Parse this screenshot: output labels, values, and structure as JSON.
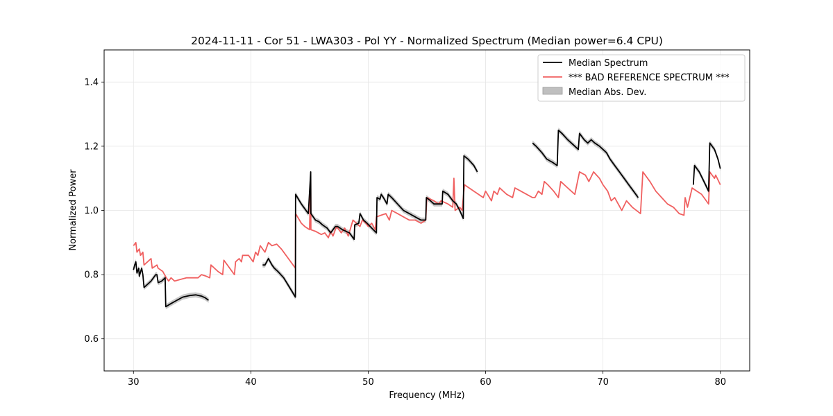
{
  "chart_data": {
    "type": "line",
    "title": "2024-11-11 - Cor 51 - LWA303 - Pol YY - Normalized Spectrum (Median power=6.4 CPU)",
    "xlabel": "Frequency (MHz)",
    "ylabel": "Normalized Power",
    "xlim": [
      27.5,
      82.5
    ],
    "ylim": [
      0.5,
      1.5
    ],
    "xticks": [
      30,
      40,
      50,
      60,
      70,
      80
    ],
    "yticks": [
      0.6,
      0.8,
      1.0,
      1.2,
      1.4
    ],
    "xtick_labels": [
      "30",
      "40",
      "50",
      "60",
      "70",
      "80"
    ],
    "ytick_labels": [
      "0.6",
      "0.8",
      "1.0",
      "1.2",
      "1.4"
    ],
    "grid": true,
    "legend_position": "top-right",
    "legend": [
      "Median Spectrum",
      "*** BAD REFERENCE SPECTRUM ***",
      "Median Abs. Dev."
    ],
    "colors": {
      "median": "#000000",
      "reference": "#f06060",
      "mad": "#bfbfbf"
    },
    "mad_halfwidth": 0.008,
    "series": [
      {
        "name": "*** BAD REFERENCE SPECTRUM ***",
        "kind": "reference",
        "segments": [
          [
            [
              30.0,
              0.89
            ],
            [
              30.2,
              0.9
            ],
            [
              30.3,
              0.87
            ],
            [
              30.5,
              0.88
            ],
            [
              30.6,
              0.86
            ],
            [
              30.8,
              0.87
            ],
            [
              30.9,
              0.83
            ],
            [
              31.2,
              0.84
            ],
            [
              31.5,
              0.85
            ],
            [
              31.6,
              0.82
            ],
            [
              32.0,
              0.83
            ],
            [
              32.1,
              0.82
            ],
            [
              32.5,
              0.81
            ],
            [
              32.8,
              0.79
            ],
            [
              33.0,
              0.78
            ],
            [
              33.2,
              0.79
            ],
            [
              33.5,
              0.78
            ],
            [
              34.0,
              0.785
            ],
            [
              34.5,
              0.79
            ],
            [
              35.0,
              0.79
            ],
            [
              35.5,
              0.79
            ],
            [
              35.8,
              0.8
            ],
            [
              36.2,
              0.795
            ],
            [
              36.5,
              0.79
            ],
            [
              36.6,
              0.83
            ],
            [
              37.2,
              0.81
            ],
            [
              37.6,
              0.8
            ],
            [
              37.7,
              0.845
            ],
            [
              38.2,
              0.82
            ],
            [
              38.6,
              0.8
            ],
            [
              38.7,
              0.84
            ],
            [
              39.0,
              0.85
            ],
            [
              39.2,
              0.84
            ],
            [
              39.3,
              0.86
            ],
            [
              39.8,
              0.86
            ],
            [
              40.0,
              0.85
            ],
            [
              40.2,
              0.84
            ],
            [
              40.4,
              0.87
            ],
            [
              40.6,
              0.86
            ],
            [
              40.8,
              0.89
            ],
            [
              41.2,
              0.87
            ],
            [
              41.5,
              0.9
            ],
            [
              41.8,
              0.89
            ],
            [
              42.2,
              0.895
            ],
            [
              42.6,
              0.88
            ],
            [
              42.8,
              0.87
            ],
            [
              43.2,
              0.85
            ],
            [
              43.6,
              0.83
            ],
            [
              43.8,
              0.82
            ],
            [
              43.81,
              0.99
            ],
            [
              44.3,
              0.96
            ],
            [
              44.6,
              0.95
            ],
            [
              45.0,
              0.94
            ],
            [
              45.1,
              1.1
            ],
            [
              45.12,
              0.94
            ],
            [
              45.5,
              0.935
            ],
            [
              46.0,
              0.925
            ],
            [
              46.3,
              0.93
            ],
            [
              46.6,
              0.915
            ],
            [
              46.8,
              0.935
            ],
            [
              47.0,
              0.92
            ],
            [
              47.3,
              0.95
            ],
            [
              47.7,
              0.93
            ],
            [
              48.0,
              0.945
            ],
            [
              48.3,
              0.92
            ],
            [
              48.7,
              0.97
            ],
            [
              49.0,
              0.96
            ],
            [
              49.3,
              0.95
            ],
            [
              49.5,
              0.97
            ],
            [
              49.8,
              0.96
            ],
            [
              50.0,
              0.95
            ],
            [
              50.3,
              0.96
            ],
            [
              50.6,
              0.94
            ],
            [
              50.7,
              0.98
            ],
            [
              51.1,
              0.985
            ],
            [
              51.5,
              0.99
            ],
            [
              51.8,
              0.97
            ],
            [
              52.0,
              1.0
            ],
            [
              52.5,
              0.99
            ],
            [
              53.0,
              0.98
            ],
            [
              53.5,
              0.97
            ],
            [
              54.0,
              0.97
            ],
            [
              54.5,
              0.96
            ],
            [
              54.9,
              0.97
            ],
            [
              55.0,
              1.04
            ],
            [
              55.6,
              1.03
            ],
            [
              56.0,
              1.02
            ],
            [
              56.2,
              1.03
            ],
            [
              56.8,
              1.02
            ],
            [
              57.2,
              1.01
            ],
            [
              57.3,
              1.1
            ],
            [
              57.4,
              1.0
            ],
            [
              57.8,
              1.01
            ],
            [
              58.0,
              1.0
            ],
            [
              58.2,
              1.08
            ],
            [
              59.0,
              1.06
            ],
            [
              59.8,
              1.04
            ],
            [
              60.0,
              1.06
            ],
            [
              60.5,
              1.03
            ],
            [
              60.7,
              1.06
            ],
            [
              61.0,
              1.05
            ],
            [
              61.2,
              1.07
            ],
            [
              61.8,
              1.05
            ],
            [
              62.3,
              1.04
            ],
            [
              62.5,
              1.07
            ],
            [
              63.0,
              1.06
            ],
            [
              63.5,
              1.05
            ],
            [
              64.0,
              1.04
            ],
            [
              64.2,
              1.04
            ],
            [
              64.5,
              1.06
            ],
            [
              64.8,
              1.05
            ],
            [
              65.0,
              1.09
            ],
            [
              65.3,
              1.08
            ],
            [
              65.8,
              1.06
            ],
            [
              66.2,
              1.04
            ],
            [
              66.4,
              1.09
            ],
            [
              67.0,
              1.07
            ],
            [
              67.6,
              1.05
            ],
            [
              68.0,
              1.12
            ],
            [
              68.5,
              1.11
            ],
            [
              68.8,
              1.09
            ],
            [
              69.2,
              1.12
            ],
            [
              69.7,
              1.1
            ],
            [
              70.0,
              1.08
            ],
            [
              70.4,
              1.06
            ],
            [
              70.7,
              1.03
            ],
            [
              71.0,
              1.04
            ],
            [
              71.3,
              1.02
            ],
            [
              71.6,
              1.0
            ],
            [
              72.0,
              1.03
            ],
            [
              72.5,
              1.01
            ],
            [
              73.2,
              0.99
            ],
            [
              73.4,
              1.12
            ],
            [
              74.0,
              1.09
            ],
            [
              74.5,
              1.06
            ],
            [
              75.0,
              1.04
            ],
            [
              75.5,
              1.02
            ],
            [
              76.0,
              1.01
            ],
            [
              76.5,
              0.99
            ],
            [
              76.9,
              0.985
            ],
            [
              77.0,
              1.04
            ],
            [
              77.2,
              1.01
            ],
            [
              77.6,
              1.07
            ],
            [
              78.0,
              1.06
            ],
            [
              78.4,
              1.05
            ],
            [
              78.6,
              1.04
            ],
            [
              79.0,
              1.02
            ],
            [
              79.1,
              1.12
            ],
            [
              79.3,
              1.11
            ],
            [
              79.5,
              1.1
            ],
            [
              79.6,
              1.11
            ],
            [
              80.0,
              1.08
            ]
          ]
        ]
      },
      {
        "name": "Median Spectrum",
        "kind": "median",
        "segments": [
          [
            [
              30.0,
              0.815
            ],
            [
              30.1,
              0.83
            ],
            [
              30.2,
              0.84
            ],
            [
              30.3,
              0.805
            ],
            [
              30.45,
              0.82
            ],
            [
              30.5,
              0.795
            ],
            [
              30.7,
              0.82
            ],
            [
              30.8,
              0.8
            ],
            [
              30.9,
              0.76
            ],
            [
              31.2,
              0.77
            ],
            [
              31.5,
              0.78
            ],
            [
              31.9,
              0.8
            ],
            [
              32.0,
              0.8
            ],
            [
              32.1,
              0.775
            ],
            [
              32.4,
              0.78
            ],
            [
              32.7,
              0.79
            ],
            [
              32.75,
              0.7
            ],
            [
              33.2,
              0.71
            ],
            [
              33.7,
              0.72
            ],
            [
              34.2,
              0.73
            ],
            [
              34.8,
              0.735
            ],
            [
              35.3,
              0.737
            ],
            [
              35.8,
              0.733
            ],
            [
              36.1,
              0.728
            ],
            [
              36.4,
              0.72
            ]
          ],
          [
            [
              41.0,
              0.83
            ],
            [
              41.2,
              0.83
            ],
            [
              41.5,
              0.85
            ],
            [
              41.8,
              0.83
            ],
            [
              42.0,
              0.82
            ],
            [
              42.3,
              0.81
            ],
            [
              42.8,
              0.79
            ],
            [
              43.3,
              0.76
            ],
            [
              43.8,
              0.73
            ],
            [
              43.81,
              1.05
            ],
            [
              44.3,
              1.02
            ],
            [
              44.7,
              1.0
            ],
            [
              44.9,
              0.99
            ],
            [
              45.1,
              1.12
            ],
            [
              45.12,
              0.99
            ],
            [
              45.5,
              0.97
            ],
            [
              45.8,
              0.965
            ],
            [
              46.1,
              0.955
            ],
            [
              46.3,
              0.95
            ],
            [
              46.5,
              0.945
            ],
            [
              46.8,
              0.93
            ],
            [
              47.2,
              0.95
            ],
            [
              47.4,
              0.95
            ],
            [
              47.8,
              0.94
            ],
            [
              48.1,
              0.935
            ],
            [
              48.4,
              0.93
            ],
            [
              48.8,
              0.91
            ],
            [
              48.85,
              0.955
            ],
            [
              49.2,
              0.96
            ],
            [
              49.3,
              0.99
            ],
            [
              49.6,
              0.97
            ],
            [
              49.9,
              0.96
            ],
            [
              50.3,
              0.945
            ],
            [
              50.7,
              0.93
            ],
            [
              50.75,
              1.04
            ],
            [
              51.0,
              1.035
            ],
            [
              51.1,
              1.05
            ],
            [
              51.3,
              1.04
            ],
            [
              51.6,
              1.02
            ],
            [
              51.7,
              1.05
            ],
            [
              52.0,
              1.04
            ],
            [
              52.5,
              1.02
            ],
            [
              53.0,
              1.0
            ],
            [
              53.5,
              0.99
            ],
            [
              54.0,
              0.98
            ],
            [
              54.5,
              0.97
            ],
            [
              54.9,
              0.97
            ],
            [
              54.95,
              1.04
            ],
            [
              55.3,
              1.03
            ],
            [
              55.6,
              1.02
            ],
            [
              56.0,
              1.02
            ],
            [
              56.3,
              1.02
            ],
            [
              56.35,
              1.06
            ],
            [
              56.8,
              1.05
            ],
            [
              57.2,
              1.03
            ],
            [
              57.5,
              1.02
            ],
            [
              57.8,
              1.0
            ],
            [
              58.1,
              0.975
            ],
            [
              58.15,
              1.17
            ],
            [
              58.5,
              1.16
            ],
            [
              59.0,
              1.14
            ],
            [
              59.3,
              1.12
            ]
          ],
          [
            [
              64.0,
              1.21
            ],
            [
              64.3,
              1.2
            ],
            [
              64.8,
              1.18
            ],
            [
              65.2,
              1.16
            ],
            [
              65.7,
              1.15
            ],
            [
              66.1,
              1.14
            ],
            [
              66.2,
              1.25
            ],
            [
              66.5,
              1.24
            ],
            [
              67.0,
              1.22
            ],
            [
              67.6,
              1.2
            ],
            [
              67.9,
              1.19
            ],
            [
              68.0,
              1.24
            ],
            [
              68.4,
              1.22
            ],
            [
              68.7,
              1.21
            ],
            [
              69.0,
              1.22
            ],
            [
              69.3,
              1.21
            ],
            [
              69.7,
              1.2
            ],
            [
              70.0,
              1.19
            ],
            [
              70.3,
              1.18
            ],
            [
              70.6,
              1.16
            ],
            [
              71.0,
              1.14
            ],
            [
              71.4,
              1.12
            ],
            [
              71.8,
              1.1
            ],
            [
              72.2,
              1.08
            ],
            [
              72.6,
              1.06
            ],
            [
              73.0,
              1.04
            ]
          ],
          [
            [
              77.7,
              1.08
            ],
            [
              77.8,
              1.14
            ],
            [
              78.2,
              1.12
            ],
            [
              78.6,
              1.09
            ],
            [
              79.0,
              1.06
            ],
            [
              79.1,
              1.21
            ],
            [
              79.5,
              1.19
            ],
            [
              79.8,
              1.16
            ],
            [
              80.0,
              1.13
            ]
          ]
        ]
      }
    ]
  }
}
